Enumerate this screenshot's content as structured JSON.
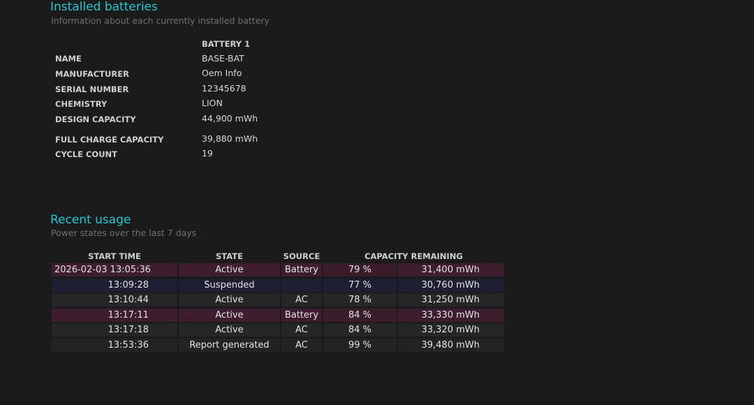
{
  "installed": {
    "title": "Installed batteries",
    "subtitle": "Information about each currently installed battery",
    "battery_header": "BATTERY 1",
    "rows": [
      {
        "label": "NAME",
        "value": "BASE-BAT"
      },
      {
        "label": "MANUFACTURER",
        "value": "Oem Info"
      },
      {
        "label": "SERIAL NUMBER",
        "value": "12345678"
      },
      {
        "label": "CHEMISTRY",
        "value": "LION"
      },
      {
        "label": "DESIGN CAPACITY",
        "value": "44,900 mWh"
      },
      {
        "label": "FULL CHARGE CAPACITY",
        "value": "39,880 mWh"
      },
      {
        "label": "CYCLE COUNT",
        "value": "19"
      }
    ]
  },
  "usage": {
    "title": "Recent usage",
    "subtitle": "Power states over the last 7 days",
    "headers": {
      "start_time": "START TIME",
      "state": "STATE",
      "source": "SOURCE",
      "capacity": "CAPACITY REMAINING"
    },
    "rows": [
      {
        "time": "2026-02-03  13:05:36",
        "state": "Active",
        "source": "Battery",
        "percent": "79 %",
        "mwh": "31,400 mWh",
        "kind": "battery"
      },
      {
        "time": "13:09:28",
        "state": "Suspended",
        "source": "",
        "percent": "77 %",
        "mwh": "30,760 mWh",
        "kind": "suspend"
      },
      {
        "time": "13:10:44",
        "state": "Active",
        "source": "AC",
        "percent": "78 %",
        "mwh": "31,250 mWh",
        "kind": "active"
      },
      {
        "time": "13:17:11",
        "state": "Active",
        "source": "Battery",
        "percent": "84 %",
        "mwh": "33,330 mWh",
        "kind": "battery"
      },
      {
        "time": "13:17:18",
        "state": "Active",
        "source": "AC",
        "percent": "84 %",
        "mwh": "33,320 mWh",
        "kind": "active"
      },
      {
        "time": "13:53:36",
        "state": "Report generated",
        "source": "AC",
        "percent": "99 %",
        "mwh": "39,480 mWh",
        "kind": "report"
      }
    ]
  }
}
